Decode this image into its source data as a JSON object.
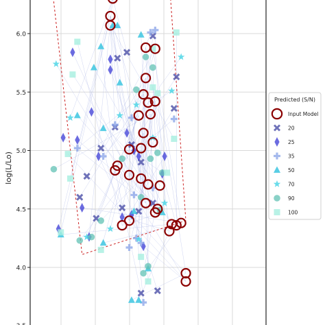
{
  "chart_data": {
    "type": "scatter",
    "title": "",
    "xlabel": "",
    "ylabel": "log(L/Lo)",
    "ylim": [
      3.5,
      6.45
    ],
    "yticks": [
      {
        "value": 4.0,
        "label": "4.0"
      },
      {
        "value": 4.5,
        "label": "4.5"
      },
      {
        "value": 5.0,
        "label": "5.0"
      },
      {
        "value": 5.5,
        "label": "5.5"
      },
      {
        "value": 6.0,
        "label": "6.0"
      }
    ],
    "ytick_partial": {
      "value": 3.5,
      "label": "3.5"
    },
    "grid": true,
    "legend": {
      "title": "Predicted (S/N)",
      "placement": "right",
      "entries": [
        {
          "label": "Input Model",
          "marker": "ring",
          "color": "#8b0000"
        },
        {
          "label": "20",
          "marker": "x-marker",
          "color": "#4b4fa8"
        },
        {
          "label": "25",
          "marker": "thin-diamond",
          "color": "#3a3ad6"
        },
        {
          "label": "35",
          "marker": "plus",
          "color": "#8fa7e8"
        },
        {
          "label": "50",
          "marker": "triangle",
          "color": "#3cc6e0"
        },
        {
          "label": "70",
          "marker": "star",
          "color": "#4fd6e6"
        },
        {
          "label": "90",
          "marker": "circle",
          "color": "#62c2b4"
        },
        {
          "label": "100",
          "marker": "square",
          "color": "#a6efe0"
        }
      ]
    },
    "series": [
      {
        "name": "Input Model",
        "points": [
          [
            0.35,
            6.3
          ],
          [
            0.34,
            6.15
          ],
          [
            0.34,
            6.07
          ],
          [
            0.49,
            5.88
          ],
          [
            0.53,
            5.87
          ],
          [
            0.49,
            5.62
          ],
          [
            0.48,
            5.48
          ],
          [
            0.5,
            5.41
          ],
          [
            0.53,
            5.42
          ],
          [
            0.46,
            5.3
          ],
          [
            0.51,
            5.31
          ],
          [
            0.48,
            5.15
          ],
          [
            0.52,
            5.07
          ],
          [
            0.42,
            5.01
          ],
          [
            0.47,
            5.02
          ],
          [
            0.37,
            4.87
          ],
          [
            0.36,
            4.83
          ],
          [
            0.42,
            4.79
          ],
          [
            0.47,
            4.76
          ],
          [
            0.5,
            4.71
          ],
          [
            0.55,
            4.7
          ],
          [
            0.49,
            4.55
          ],
          [
            0.54,
            4.5
          ],
          [
            0.53,
            4.47
          ],
          [
            0.42,
            4.4
          ],
          [
            0.39,
            4.36
          ],
          [
            0.6,
            4.37
          ],
          [
            0.62,
            4.36
          ],
          [
            0.64,
            4.38
          ],
          [
            0.59,
            4.31
          ],
          [
            0.66,
            3.95
          ],
          [
            0.66,
            3.88
          ]
        ]
      },
      {
        "name": "20",
        "points": [
          [
            0.41,
            5.84
          ],
          [
            0.37,
            5.79
          ],
          [
            0.36,
            5.2
          ],
          [
            0.43,
            5.05
          ],
          [
            0.3,
            5.02
          ],
          [
            0.24,
            4.78
          ],
          [
            0.21,
            4.6
          ],
          [
            0.39,
            4.51
          ],
          [
            0.46,
            4.48
          ],
          [
            0.28,
            4.42
          ],
          [
            0.52,
            4.55
          ],
          [
            0.47,
            4.9
          ],
          [
            0.61,
            5.36
          ],
          [
            0.62,
            5.63
          ],
          [
            0.52,
            5.98
          ],
          [
            0.54,
            3.8
          ],
          [
            0.47,
            3.78
          ]
        ]
      },
      {
        "name": "25",
        "points": [
          [
            0.18,
            5.84
          ],
          [
            0.34,
            5.78
          ],
          [
            0.34,
            5.69
          ],
          [
            0.26,
            5.33
          ],
          [
            0.14,
            5.11
          ],
          [
            0.2,
            5.09
          ],
          [
            0.41,
            5.15
          ],
          [
            0.29,
            4.95
          ],
          [
            0.57,
            4.95
          ],
          [
            0.46,
            4.95
          ],
          [
            0.56,
            4.8
          ],
          [
            0.22,
            4.51
          ],
          [
            0.39,
            4.43
          ],
          [
            0.43,
            4.45
          ],
          [
            0.48,
            4.18
          ],
          [
            0.25,
            4.26
          ],
          [
            0.12,
            4.33
          ],
          [
            0.44,
            5.0
          ]
        ]
      },
      {
        "name": "35",
        "points": [
          [
            0.51,
            6.01
          ],
          [
            0.53,
            6.03
          ],
          [
            0.43,
            5.28
          ],
          [
            0.2,
            5.02
          ],
          [
            0.31,
            4.95
          ],
          [
            0.44,
            4.62
          ],
          [
            0.52,
            4.68
          ],
          [
            0.45,
            4.25
          ],
          [
            0.47,
            4.21
          ],
          [
            0.42,
            4.17
          ],
          [
            0.48,
            3.7
          ],
          [
            0.36,
            5.22
          ],
          [
            0.61,
            5.27
          ]
        ]
      },
      {
        "name": "50",
        "points": [
          [
            0.3,
            5.89
          ],
          [
            0.35,
            6.07
          ],
          [
            0.37,
            6.07
          ],
          [
            0.47,
            5.99
          ],
          [
            0.27,
            5.71
          ],
          [
            0.38,
            5.58
          ],
          [
            0.2,
            5.3
          ],
          [
            0.31,
            5.19
          ],
          [
            0.44,
            4.48
          ],
          [
            0.56,
            4.47
          ],
          [
            0.13,
            4.28
          ],
          [
            0.31,
            4.21
          ],
          [
            0.5,
            3.99
          ],
          [
            0.46,
            3.72
          ],
          [
            0.43,
            3.72
          ]
        ]
      },
      {
        "name": "70",
        "points": [
          [
            0.11,
            5.74
          ],
          [
            0.17,
            5.28
          ],
          [
            0.45,
            5.39
          ],
          [
            0.38,
            5.3
          ],
          [
            0.52,
            5.11
          ],
          [
            0.57,
            4.55
          ],
          [
            0.34,
            4.33
          ],
          [
            0.46,
            4.24
          ],
          [
            0.64,
            5.8
          ],
          [
            0.6,
            5.51
          ],
          [
            0.24,
            4.26
          ]
        ]
      },
      {
        "name": "90",
        "points": [
          [
            0.1,
            4.84
          ],
          [
            0.51,
            4.93
          ],
          [
            0.54,
            4.98
          ],
          [
            0.56,
            4.81
          ],
          [
            0.47,
            4.6
          ],
          [
            0.55,
            4.49
          ],
          [
            0.26,
            4.26
          ],
          [
            0.21,
            4.23
          ],
          [
            0.3,
            4.4
          ],
          [
            0.5,
            4.01
          ],
          [
            0.48,
            3.95
          ],
          [
            0.39,
            4.93
          ],
          [
            0.52,
            5.71
          ],
          [
            0.49,
            5.8
          ],
          [
            0.45,
            5.52
          ]
        ]
      },
      {
        "name": "100",
        "points": [
          [
            0.2,
            5.93
          ],
          [
            0.18,
            5.65
          ],
          [
            0.62,
            6.01
          ],
          [
            0.52,
            5.87
          ],
          [
            0.52,
            5.54
          ],
          [
            0.54,
            5.49
          ],
          [
            0.16,
            4.97
          ],
          [
            0.17,
            4.76
          ],
          [
            0.13,
            4.3
          ],
          [
            0.61,
            5.1
          ],
          [
            0.58,
            4.81
          ],
          [
            0.3,
            4.15
          ],
          [
            0.47,
            4.09
          ],
          [
            0.5,
            3.88
          ]
        ]
      }
    ],
    "selection_boundary": [
      [
        0.09,
        6.45
      ],
      [
        0.22,
        4.11
      ],
      [
        0.66,
        4.4
      ],
      [
        0.59,
        6.45
      ]
    ]
  }
}
